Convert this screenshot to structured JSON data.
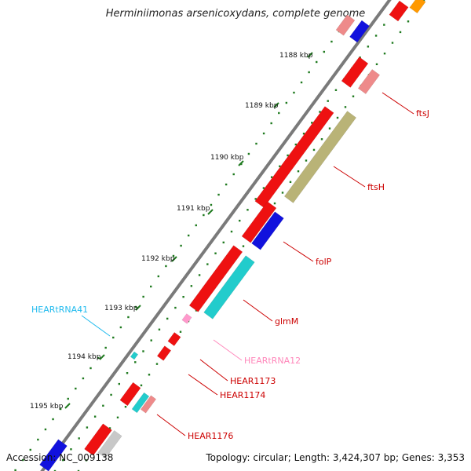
{
  "title": "Herminiimonas arsenicoxydans, complete genome",
  "footer": {
    "accession": "Accession: NC_009138",
    "summary": "Topology: circular; Length: 3,424,307 bp; Genes: 3,353"
  },
  "ticks": [
    "1188 kbp",
    "1189 kbp",
    "1190 kbp",
    "1191 kbp",
    "1192 kbp",
    "1193 kbp",
    "1194 kbp",
    "1195 kbp"
  ],
  "gene_labels": [
    "ftsJ",
    "ftsH",
    "folP",
    "glmM",
    "HEARtRNA12",
    "HEAR1173",
    "HEAR1174",
    "HEAR1176",
    "HEARtRNA41"
  ],
  "colors": {
    "backbone": "#7a7a7a",
    "dots": "#1f7a1f",
    "red": "#ee1111",
    "pink": "#ee8a8a",
    "olive": "#b9b377",
    "blue": "#1111dd",
    "cyan": "#22cccc",
    "orange": "#ff9900",
    "light_pink": "#ff99cc",
    "gray": "#c8c8c8",
    "label_red": "#cc0000",
    "label_pink": "#ff88bb",
    "label_cyan": "#22bbee"
  }
}
